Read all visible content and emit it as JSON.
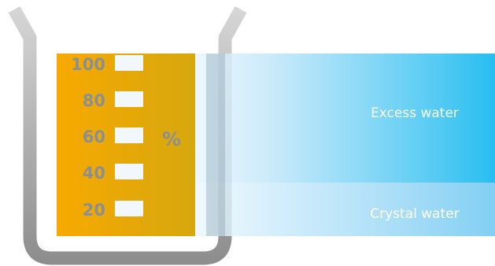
{
  "scale": {
    "marks": [
      "100",
      "80",
      "60",
      "40",
      "20"
    ],
    "unit": "%"
  },
  "bands": {
    "excess": "Excess water",
    "crystal": "Crystal water"
  },
  "colors": {
    "beaker": "#bdbdbd",
    "content": "#f3a600",
    "band_excess_end": "#27bef0",
    "band_crystal_end": "#82cff3",
    "scale_text": "#8a8f93"
  },
  "icons": {
    "vessel": "beaker-icon"
  }
}
